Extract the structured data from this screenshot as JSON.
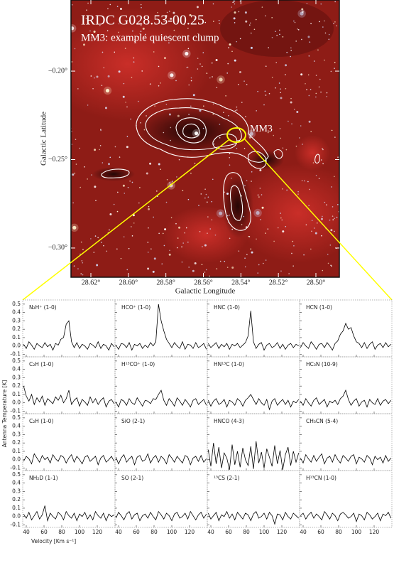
{
  "chart_data": [
    {
      "type": "image",
      "title": "IRDC G028.53-00.25",
      "subtitle": "MM3: example quiescent clump",
      "annotations": [
        "MM3"
      ],
      "xlabel": "Galactic Longitude",
      "ylabel": "Galactic Latitude",
      "xlim": [
        28.6306,
        28.4875
      ],
      "ylim": [
        -0.3165,
        -0.1598
      ],
      "xticks": [
        {
          "value": 28.62,
          "label": "28.62°"
        },
        {
          "value": 28.6,
          "label": "28.60°"
        },
        {
          "value": 28.58,
          "label": "28.58°"
        },
        {
          "value": 28.56,
          "label": "28.56°"
        },
        {
          "value": 28.54,
          "label": "28.54°"
        },
        {
          "value": 28.52,
          "label": "28.52°"
        },
        {
          "value": 28.5,
          "label": "28.50°"
        }
      ],
      "yticks": [
        {
          "value": -0.2,
          "label": "−0.20°"
        },
        {
          "value": -0.25,
          "label": "−0.25°"
        },
        {
          "value": -0.3,
          "label": "−0.30°"
        }
      ]
    },
    {
      "type": "line",
      "xlabel": "Velocity [Km s⁻¹]",
      "ylabel": "Antenna Temperature [K]",
      "color": "#000000",
      "x": [
        37,
        40,
        43,
        46,
        49,
        52,
        55,
        58,
        61,
        64,
        67,
        70,
        73,
        76,
        79,
        82,
        85,
        88,
        91,
        94,
        97,
        100,
        103,
        106,
        109,
        112,
        115,
        118,
        121,
        124,
        127,
        130,
        133,
        136,
        139
      ],
      "xlim": [
        36,
        140
      ],
      "ylim": [
        -0.13,
        0.55
      ],
      "xticks": [
        40,
        60,
        80,
        100,
        120
      ],
      "yticks": [
        -0.1,
        {
          "value": 0,
          "label": "0.0"
        },
        0.1,
        0.2,
        0.3,
        0.4,
        0.5
      ],
      "series": [
        {
          "name": "N₂H⁺ (1-0)",
          "values": [
            0.02,
            -0.03,
            0.05,
            0.01,
            -0.04,
            0.03,
            0.0,
            -0.02,
            0.04,
            -0.01,
            0.02,
            -0.05,
            0.03,
            0.01,
            0.08,
            0.1,
            0.26,
            0.3,
            0.05,
            -0.02,
            0.04,
            -0.03,
            0.02,
            0.0,
            -0.04,
            0.03,
            0.01,
            -0.02,
            0.05,
            -0.03,
            0.02,
            0.0,
            -0.05,
            0.03,
            -0.01
          ]
        },
        {
          "name": "HCO⁺ (1-0)",
          "values": [
            0.01,
            -0.04,
            0.03,
            0.02,
            -0.02,
            0.04,
            -0.05,
            0.02,
            0.0,
            0.03,
            -0.03,
            0.01,
            -0.02,
            0.04,
            0.0,
            0.05,
            0.5,
            0.3,
            0.18,
            0.08,
            0.03,
            -0.02,
            0.04,
            0.0,
            -0.03,
            0.05,
            -0.04,
            0.02,
            0.01,
            -0.03,
            0.04,
            -0.02,
            0.0,
            0.03,
            -0.04
          ]
        },
        {
          "name": "HNC (1-0)",
          "values": [
            0.03,
            -0.02,
            0.01,
            0.04,
            -0.03,
            0.02,
            -0.01,
            0.03,
            -0.04,
            0.02,
            0.0,
            0.03,
            -0.02,
            0.01,
            0.04,
            0.12,
            0.42,
            0.05,
            -0.03,
            0.02,
            0.04,
            -0.05,
            0.01,
            0.03,
            -0.02,
            0.0,
            0.04,
            -0.03,
            0.02,
            -0.04,
            0.01,
            0.03,
            -0.02,
            0.02,
            0.0
          ]
        },
        {
          "name": "HCN (1-0)",
          "values": [
            -0.02,
            0.04,
            0.0,
            -0.03,
            0.05,
            0.01,
            -0.04,
            0.02,
            0.03,
            -0.02,
            0.04,
            0.0,
            -0.05,
            0.03,
            0.06,
            0.14,
            0.18,
            0.27,
            0.2,
            0.22,
            0.12,
            0.05,
            0.03,
            -0.02,
            0.04,
            -0.03,
            0.02,
            0.05,
            -0.04,
            0.01,
            0.03,
            -0.02,
            0.04,
            -0.01,
            0.02
          ]
        },
        {
          "name": "C₂H (1-0)",
          "values": [
            0.2,
            0.08,
            0.02,
            0.1,
            -0.02,
            0.06,
            0.01,
            0.08,
            -0.03,
            0.05,
            0.02,
            -0.01,
            0.07,
            0.03,
            0.09,
            0.0,
            0.05,
            0.15,
            -0.02,
            0.03,
            0.06,
            -0.04,
            0.04,
            0.01,
            -0.03,
            0.07,
            0.0,
            0.05,
            -0.02,
            0.03,
            0.06,
            -0.05,
            0.02,
            0.04,
            -0.01
          ]
        },
        {
          "name": "H¹³CO⁺ (1-0)",
          "values": [
            0.01,
            -0.05,
            0.04,
            0.02,
            -0.03,
            0.05,
            0.0,
            -0.02,
            0.06,
            0.01,
            -0.04,
            0.03,
            0.02,
            -0.01,
            0.05,
            0.04,
            0.1,
            0.15,
            0.03,
            -0.03,
            0.05,
            0.01,
            -0.04,
            0.06,
            0.02,
            -0.03,
            0.04,
            0.0,
            -0.05,
            0.03,
            0.05,
            -0.02,
            0.01,
            0.04,
            -0.03
          ]
        },
        {
          "name": "HN¹³C (1-0)",
          "values": [
            0.03,
            -0.04,
            0.02,
            0.05,
            -0.02,
            0.0,
            0.04,
            -0.05,
            0.03,
            0.01,
            -0.03,
            0.05,
            0.02,
            -0.04,
            0.03,
            0.06,
            0.1,
            0.04,
            -0.02,
            0.05,
            0.0,
            -0.03,
            0.04,
            -0.08,
            0.02,
            0.05,
            -0.03,
            0.01,
            0.04,
            -0.02,
            0.03,
            -0.05,
            0.02,
            0.0,
            0.04
          ]
        },
        {
          "name": "HC₃N (10-9)",
          "values": [
            0.02,
            -0.03,
            0.05,
            0.0,
            -0.04,
            0.03,
            0.06,
            -0.02,
            0.01,
            0.04,
            -0.05,
            0.02,
            0.0,
            0.03,
            -0.02,
            0.05,
            0.08,
            0.15,
            0.04,
            -0.03,
            0.02,
            0.05,
            -0.04,
            0.01,
            0.03,
            -0.05,
            0.04,
            0.0,
            -0.02,
            0.05,
            -0.03,
            0.02,
            0.04,
            -0.01,
            0.03
          ]
        },
        {
          "name": "C₂H (1-0)",
          "values": [
            -0.02,
            0.04,
            0.01,
            -0.05,
            0.07,
            0.02,
            -0.03,
            0.05,
            0.0,
            0.03,
            -0.04,
            0.06,
            0.01,
            -0.02,
            0.05,
            0.03,
            -0.04,
            0.02,
            0.06,
            -0.03,
            0.04,
            0.0,
            -0.05,
            0.03,
            0.05,
            -0.02,
            0.01,
            0.04,
            -0.06,
            0.02,
            0.05,
            -0.03,
            0.0,
            0.04,
            -0.02
          ]
        },
        {
          "name": "SiO (2-1)",
          "values": [
            0.03,
            -0.05,
            0.02,
            0.06,
            -0.03,
            0.01,
            0.04,
            -0.06,
            0.03,
            0.05,
            -0.02,
            0.0,
            0.07,
            -0.04,
            0.02,
            0.05,
            -0.03,
            0.04,
            0.01,
            -0.05,
            0.06,
            0.02,
            -0.03,
            0.04,
            0.0,
            -0.04,
            0.05,
            0.03,
            -0.06,
            0.02,
            0.04,
            -0.02,
            0.05,
            -0.03,
            0.01
          ]
        },
        {
          "name": "HNCO (4-3)",
          "values": [
            0.12,
            -0.08,
            0.2,
            -0.05,
            0.15,
            -0.1,
            0.08,
            0.02,
            -0.12,
            0.18,
            -0.06,
            0.1,
            -0.09,
            0.14,
            0.0,
            -0.07,
            0.16,
            -0.11,
            0.22,
            -0.04,
            0.09,
            -0.1,
            0.13,
            0.03,
            -0.08,
            0.17,
            -0.05,
            0.11,
            -0.12,
            0.06,
            0.15,
            -0.07,
            0.1,
            -0.03,
            0.08
          ]
        },
        {
          "name": "CH₃CN (5-4)",
          "values": [
            0.02,
            -0.04,
            0.06,
            0.01,
            -0.03,
            0.05,
            -0.02,
            0.03,
            0.07,
            -0.05,
            0.02,
            0.04,
            -0.03,
            0.06,
            0.0,
            -0.04,
            0.05,
            0.02,
            -0.02,
            0.04,
            0.06,
            -0.05,
            0.03,
            0.01,
            -0.03,
            0.05,
            0.02,
            -0.06,
            0.04,
            0.0,
            0.03,
            -0.04,
            0.05,
            -0.02,
            0.02
          ]
        },
        {
          "name": "NH₂D (1-1)",
          "values": [
            0.03,
            -0.02,
            0.05,
            -0.04,
            0.01,
            0.06,
            -0.03,
            0.02,
            0.13,
            -0.05,
            0.04,
            0.0,
            -0.03,
            0.05,
            0.02,
            -0.04,
            0.06,
            0.01,
            -0.02,
            0.04,
            -0.05,
            0.03,
            0.0,
            0.05,
            -0.03,
            0.02,
            -0.04,
            0.06,
            0.01,
            -0.02,
            0.04,
            -0.05,
            0.03,
            0.0,
            0.02
          ]
        },
        {
          "name": "SO (2-1)",
          "values": [
            -0.02,
            0.05,
            0.01,
            -0.04,
            0.03,
            0.06,
            -0.03,
            0.02,
            0.04,
            -0.05,
            0.01,
            0.03,
            -0.02,
            0.05,
            0.0,
            -0.04,
            0.06,
            0.02,
            -0.03,
            0.04,
            0.01,
            -0.05,
            0.03,
            0.05,
            -0.02,
            0.0,
            0.04,
            -0.03,
            0.06,
            0.01,
            -0.04,
            0.02,
            0.05,
            -0.02,
            0.03
          ]
        },
        {
          "name": "¹³CS (2-1)",
          "values": [
            0.04,
            -0.03,
            0.01,
            0.05,
            -0.05,
            0.02,
            0.0,
            0.06,
            -0.02,
            0.03,
            -0.04,
            0.05,
            0.01,
            -0.03,
            0.04,
            0.02,
            -0.05,
            0.03,
            0.06,
            -0.02,
            0.0,
            0.04,
            -0.03,
            0.05,
            0.01,
            -0.09,
            0.03,
            0.02,
            -0.04,
            0.05,
            0.0,
            -0.03,
            0.04,
            0.01,
            -0.02
          ]
        },
        {
          "name": "H¹³CN (1-0)",
          "values": [
            0.01,
            0.04,
            -0.03,
            0.02,
            0.05,
            -0.02,
            0.03,
            0.0,
            -0.04,
            0.06,
            0.02,
            -0.03,
            0.04,
            0.01,
            -0.05,
            0.03,
            0.05,
            0.02,
            -0.02,
            0.0,
            0.04,
            -0.06,
            0.03,
            0.01,
            -0.04,
            0.05,
            0.02,
            -0.03,
            0.0,
            0.04,
            -0.05,
            0.03,
            0.01,
            0.05,
            -0.02
          ]
        }
      ]
    }
  ]
}
